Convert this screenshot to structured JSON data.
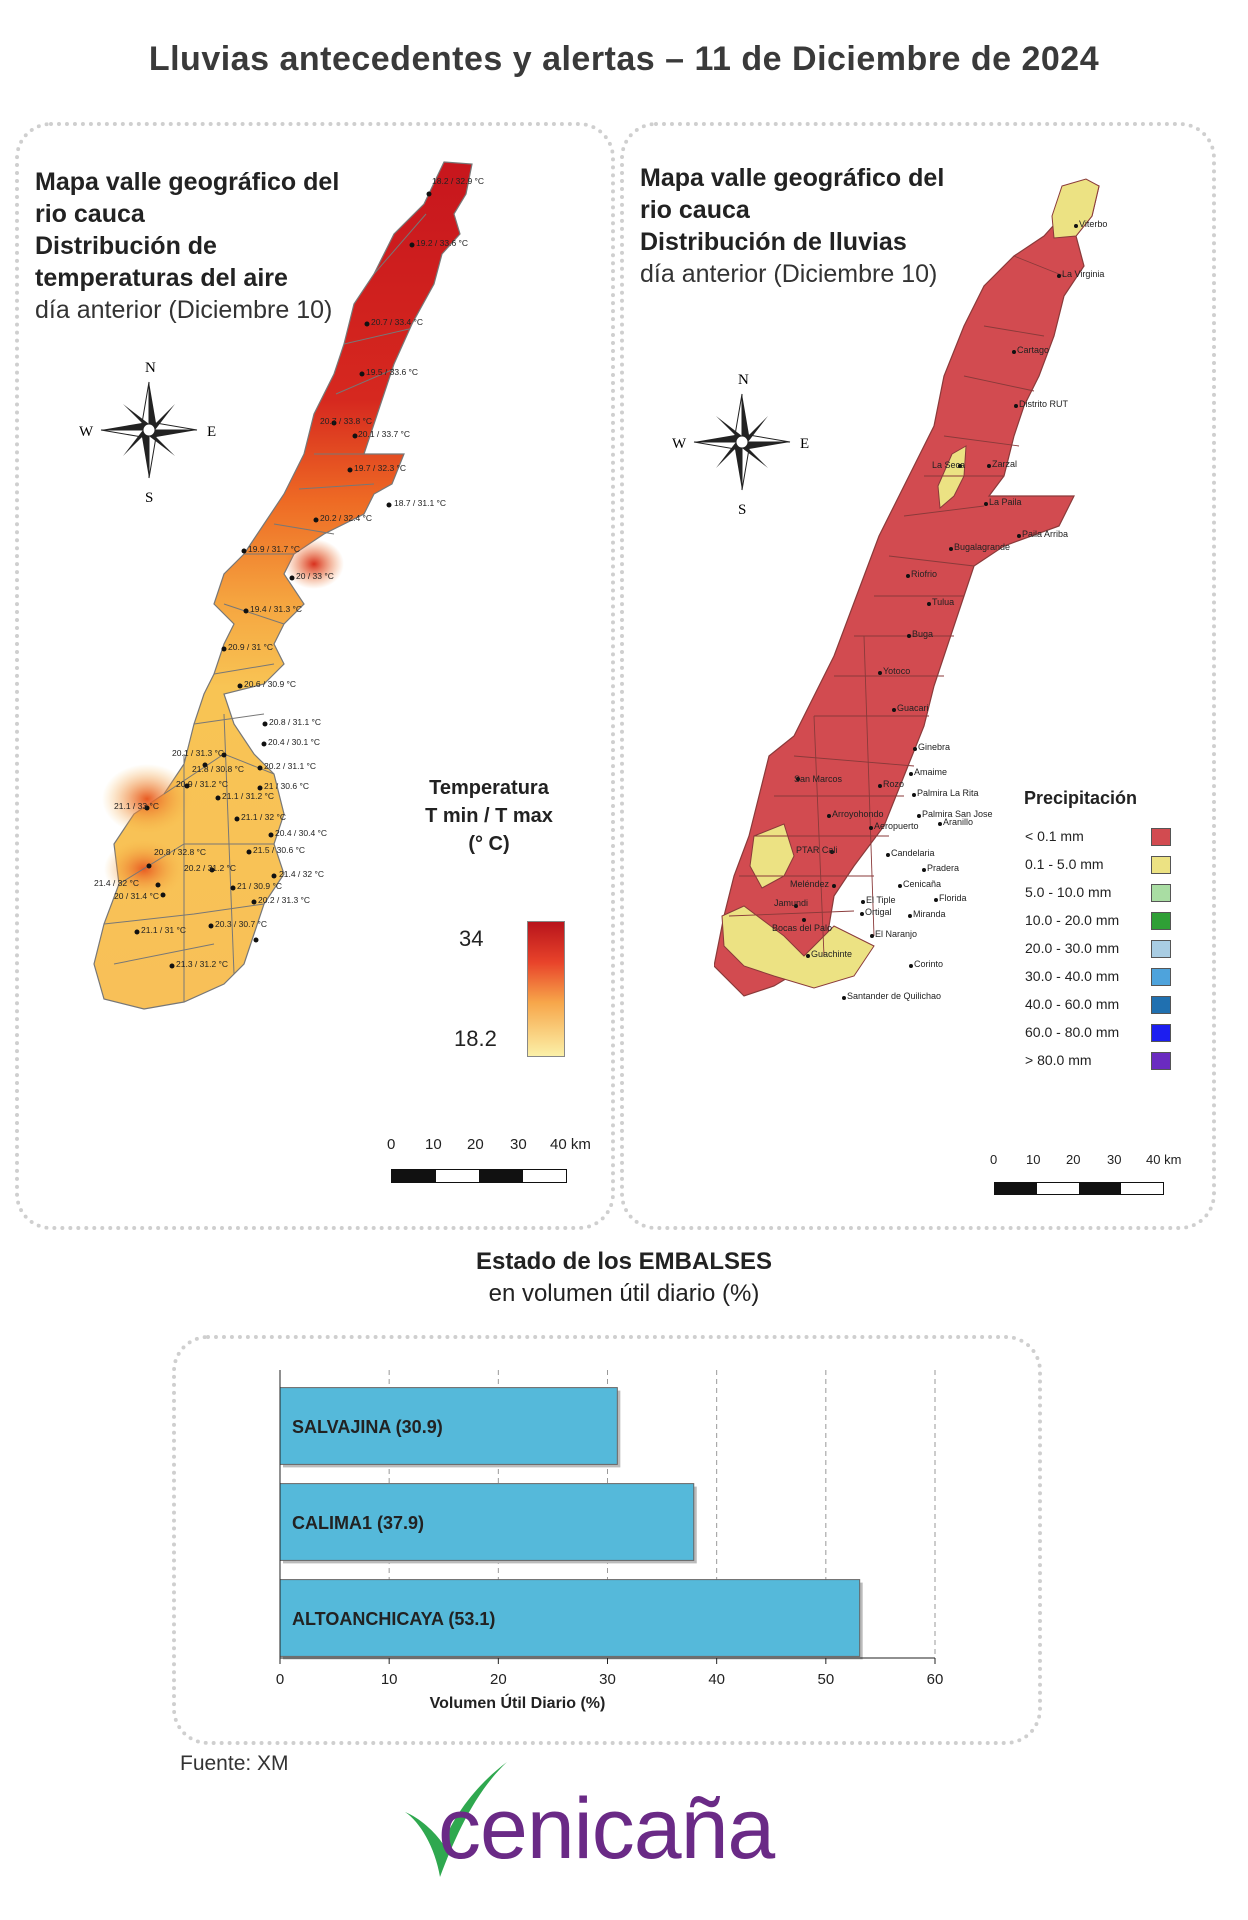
{
  "title": "Lluvias antecedentes y alertas – 11 de Diciembre de 2024",
  "temp_map": {
    "title_line1": "Mapa valle geográfico del",
    "title_line2": "rio cauca",
    "title_line3": "Distribución de",
    "title_line4": "temperaturas del aire",
    "title_line5": "día anterior (Diciembre 10)",
    "legend_title1": "Temperatura",
    "legend_title2": "T min / T max",
    "legend_title3": "(° C)",
    "legend_max": "34",
    "legend_min": "18.2",
    "colors": {
      "hot": "#c21a20",
      "warm": "#ef6a22",
      "mild": "#f6b847",
      "cool": "#fbe08a"
    },
    "stations": [
      "18.2 / 32.9 °C",
      "19.2 / 33.6 °C",
      "20.7 / 33.4 °C",
      "19.5 / 33.6 °C",
      "20.7 / 33.8 °C",
      "20.1 / 33.7 °C",
      "19.7 / 32.3 °C",
      "18.7 / 31.1 °C",
      "20.2 / 32.4 °C",
      "19.9 / 31.7 °C",
      "20 / 33 °C",
      "19.4 / 31.3 °C",
      "20.9 / 31 °C",
      "20.6 / 30.9 °C",
      "20.8 / 31.1 °C",
      "20.4 / 30.1 °C",
      "20.1 / 31.3 °C",
      "21.8 / 30.8 °C",
      "20.2 / 31.1 °C",
      "20.9 / 31.2 °C",
      "21 / 30.6 °C",
      "21.1 / 31.2 °C",
      "21.1 / 33 °C",
      "21.1 / 32 °C",
      "20.4 / 30.4 °C",
      "20.8 / 32.8 °C",
      "21.5 / 30.6 °C",
      "20.2 / 31.2 °C",
      "21.4 / 32 °C",
      "21.4 / 32 °C",
      "21 / 30.9 °C",
      "20 / 31.4 °C",
      "20.2 / 31.3 °C",
      "20.3 / 30.7 °C",
      "21.1 / 31 °C",
      "21.3 / 31.2 °C"
    ],
    "scale": {
      "s0": "0",
      "s1": "10",
      "s2": "20",
      "s3": "30",
      "s4": "40 km"
    },
    "compass": {
      "n": "N",
      "s": "S",
      "e": "E",
      "w": "W"
    }
  },
  "rain_map": {
    "title_line1": "Mapa valle geográfico del",
    "title_line2": "rio cauca",
    "title_line3": "Distribución de lluvias",
    "title_line4": "día anterior (Diciembre 10)",
    "legend_title": "Precipitación",
    "legend": [
      {
        "label": "< 0.1 mm",
        "color": "#d24b50"
      },
      {
        "label": "0.1 - 5.0 mm",
        "color": "#ece283"
      },
      {
        "label": "5.0 - 10.0 mm",
        "color": "#a9dda3"
      },
      {
        "label": "10.0 - 20.0 mm",
        "color": "#2f9f36"
      },
      {
        "label": "20.0 - 30.0 mm",
        "color": "#a9cde3"
      },
      {
        "label": "30.0 - 40.0 mm",
        "color": "#4ea3dc"
      },
      {
        "label": "40.0 - 60.0 mm",
        "color": "#2070b0"
      },
      {
        "label": "60.0 - 80.0 mm",
        "color": "#1c1ef0"
      },
      {
        "label": "> 80.0 mm",
        "color": "#6a2bc0"
      }
    ],
    "towns": [
      "Viterbo",
      "La Virginia",
      "Cartago",
      "Distrito RUT",
      "La Seca",
      "Zarzal",
      "La Paila",
      "Paila Arriba",
      "Bugalagrande",
      "Riofrio",
      "Tulua",
      "Buga",
      "Yotoco",
      "Guacari",
      "Ginebra",
      "Amaime",
      "San Marcos",
      "Rozo",
      "Palmira La Rita",
      "Arroyohondo",
      "Palmira San Jose",
      "Aeropuerto",
      "Aranillo",
      "PTAR Cali",
      "Candelaria",
      "Pradera",
      "Meléndez",
      "Cenicaña",
      "El Tiple",
      "Florida",
      "Jamundi",
      "Bocas del Palo",
      "Ortigal",
      "Miranda",
      "El Naranjo",
      "Guachinte",
      "Corinto",
      "Santander de Quilichao"
    ],
    "scale": {
      "s0": "0",
      "s1": "10",
      "s2": "20",
      "s3": "30",
      "s4": "40 km"
    },
    "compass": {
      "n": "N",
      "s": "S",
      "e": "E",
      "w": "W"
    }
  },
  "reservoirs": {
    "title_bold": "Estado de los EMBALSES",
    "title_sub": "en volumen útil diario (%)",
    "xlabel": "Volumen Útil Diario (%)",
    "bar_color": "#55b9da"
  },
  "chart_data": {
    "type": "bar",
    "orientation": "horizontal",
    "categories": [
      "SALVAJINA (30.9)",
      "CALIMA1 (37.9)",
      "ALTOANCHICAYA (53.1)"
    ],
    "values": [
      30.9,
      37.9,
      53.1
    ],
    "xlabel": "Volumen Útil Diario (%)",
    "xlim": [
      0,
      60
    ],
    "xticks": [
      "0",
      "10",
      "20",
      "30",
      "40",
      "50",
      "60"
    ],
    "grid": true
  },
  "source": "Fuente: XM",
  "logo": {
    "text": "cenicaña",
    "check_color": "#2fa84f",
    "text_color": "#6a2a86"
  }
}
